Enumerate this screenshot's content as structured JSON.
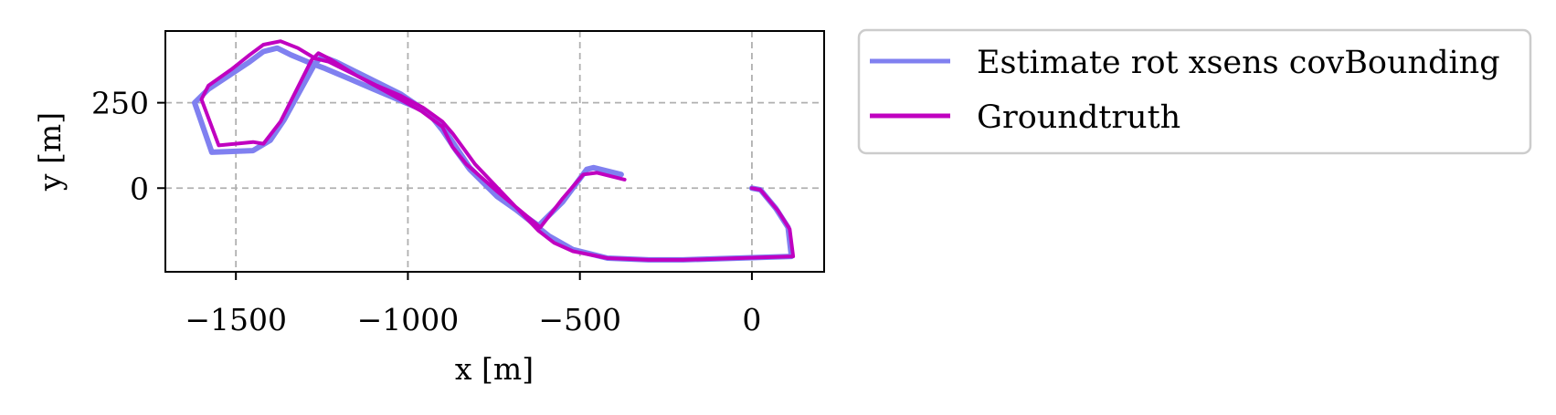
{
  "chart_data": {
    "type": "line",
    "title": "",
    "xlabel": "x [m]",
    "ylabel": "y [m]",
    "xlim": [
      -1705,
      210
    ],
    "ylim": [
      -245,
      460
    ],
    "xticks": [
      {
        "value": -1500,
        "label": "−1500"
      },
      {
        "value": -1000,
        "label": "−1000"
      },
      {
        "value": -500,
        "label": "−500"
      },
      {
        "value": 0,
        "label": "0"
      }
    ],
    "yticks": [
      {
        "value": 0,
        "label": "0"
      },
      {
        "value": 250,
        "label": "250"
      }
    ],
    "grid": true,
    "legend_position": "outside-right-top",
    "series": [
      {
        "name": "Estimate rot xsens covBounding",
        "color": "#8080f0",
        "points": [
          [
            0,
            0
          ],
          [
            25,
            -5
          ],
          [
            70,
            -60
          ],
          [
            105,
            -115
          ],
          [
            115,
            -200
          ],
          [
            -200,
            -210
          ],
          [
            -300,
            -210
          ],
          [
            -420,
            -205
          ],
          [
            -520,
            -180
          ],
          [
            -590,
            -140
          ],
          [
            -640,
            -100
          ],
          [
            -740,
            -20
          ],
          [
            -820,
            60
          ],
          [
            -880,
            150
          ],
          [
            -910,
            195
          ],
          [
            -960,
            230
          ],
          [
            -1030,
            260
          ],
          [
            -1100,
            290
          ],
          [
            -1170,
            320
          ],
          [
            -1240,
            350
          ],
          [
            -1280,
            365
          ],
          [
            -1340,
            390
          ],
          [
            -1380,
            410
          ],
          [
            -1420,
            400
          ],
          [
            -1460,
            370
          ],
          [
            -1520,
            330
          ],
          [
            -1580,
            290
          ],
          [
            -1620,
            250
          ],
          [
            -1570,
            105
          ],
          [
            -1450,
            110
          ],
          [
            -1400,
            140
          ],
          [
            -1360,
            200
          ],
          [
            -1330,
            255
          ],
          [
            -1300,
            310
          ],
          [
            -1270,
            365
          ],
          [
            -1250,
            385
          ],
          [
            -1210,
            370
          ],
          [
            -1130,
            330
          ],
          [
            -1020,
            275
          ],
          [
            -940,
            220
          ],
          [
            -900,
            170
          ],
          [
            -860,
            110
          ],
          [
            -820,
            55
          ],
          [
            -740,
            -25
          ],
          [
            -620,
            -110
          ],
          [
            -550,
            -40
          ],
          [
            -480,
            55
          ],
          [
            -460,
            60
          ],
          [
            -380,
            40
          ]
        ]
      },
      {
        "name": "Groundtruth",
        "color": "#c000c0",
        "points": [
          [
            0,
            0
          ],
          [
            25,
            -5
          ],
          [
            75,
            -65
          ],
          [
            110,
            -120
          ],
          [
            120,
            -200
          ],
          [
            -200,
            -210
          ],
          [
            -300,
            -210
          ],
          [
            -420,
            -205
          ],
          [
            -520,
            -185
          ],
          [
            -575,
            -160
          ],
          [
            -620,
            -125
          ],
          [
            -720,
            -20
          ],
          [
            -805,
            70
          ],
          [
            -870,
            160
          ],
          [
            -900,
            195
          ],
          [
            -955,
            235
          ],
          [
            -1020,
            270
          ],
          [
            -1090,
            300
          ],
          [
            -1160,
            335
          ],
          [
            -1230,
            370
          ],
          [
            -1270,
            380
          ],
          [
            -1320,
            410
          ],
          [
            -1370,
            430
          ],
          [
            -1420,
            420
          ],
          [
            -1460,
            390
          ],
          [
            -1510,
            350
          ],
          [
            -1580,
            300
          ],
          [
            -1600,
            260
          ],
          [
            -1550,
            125
          ],
          [
            -1450,
            135
          ],
          [
            -1420,
            130
          ],
          [
            -1370,
            195
          ],
          [
            -1340,
            255
          ],
          [
            -1310,
            315
          ],
          [
            -1280,
            375
          ],
          [
            -1260,
            395
          ],
          [
            -1230,
            380
          ],
          [
            -1150,
            330
          ],
          [
            -1050,
            275
          ],
          [
            -960,
            225
          ],
          [
            -900,
            180
          ],
          [
            -870,
            120
          ],
          [
            -830,
            70
          ],
          [
            -740,
            -10
          ],
          [
            -615,
            -115
          ],
          [
            -550,
            -30
          ],
          [
            -490,
            40
          ],
          [
            -450,
            45
          ],
          [
            -370,
            25
          ]
        ]
      }
    ]
  }
}
